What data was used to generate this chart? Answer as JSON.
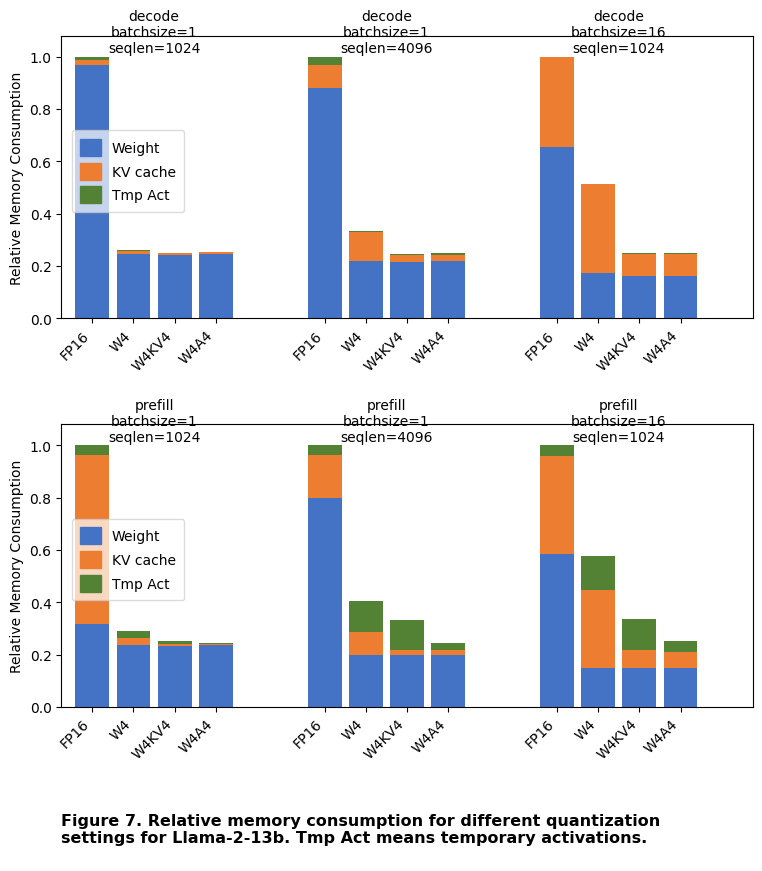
{
  "decode": {
    "groups": [
      {
        "label": "decode\nbatchsize=1\nseqlen=1024",
        "categories": [
          "FP16",
          "W4",
          "W4KV4",
          "W4A4"
        ],
        "weight": [
          0.97,
          0.245,
          0.24,
          0.244
        ],
        "kvcache": [
          0.018,
          0.014,
          0.008,
          0.008
        ],
        "tmpact": [
          0.012,
          0.001,
          0.001,
          0.001
        ]
      },
      {
        "label": "decode\nbatchsize=1\nseqlen=4096",
        "categories": [
          "FP16",
          "W4",
          "W4KV4",
          "W4A4"
        ],
        "weight": [
          0.88,
          0.22,
          0.215,
          0.218
        ],
        "kvcache": [
          0.09,
          0.11,
          0.025,
          0.025
        ],
        "tmpact": [
          0.03,
          0.005,
          0.005,
          0.005
        ]
      },
      {
        "label": "decode\nbatchsize=16\nseqlen=1024",
        "categories": [
          "FP16",
          "W4",
          "W4KV4",
          "W4A4"
        ],
        "weight": [
          0.655,
          0.172,
          0.163,
          0.163
        ],
        "kvcache": [
          0.345,
          0.34,
          0.082,
          0.082
        ],
        "tmpact": [
          0.0,
          0.003,
          0.003,
          0.003
        ]
      }
    ]
  },
  "prefill": {
    "groups": [
      {
        "label": "prefill\nbatchsize=1\nseqlen=1024",
        "categories": [
          "FP16",
          "W4",
          "W4KV4",
          "W4A4"
        ],
        "weight": [
          0.318,
          0.235,
          0.232,
          0.235
        ],
        "kvcache": [
          0.645,
          0.028,
          0.01,
          0.006
        ],
        "tmpact": [
          0.037,
          0.027,
          0.01,
          0.004
        ]
      },
      {
        "label": "prefill\nbatchsize=1\nseqlen=4096",
        "categories": [
          "FP16",
          "W4",
          "W4KV4",
          "W4A4"
        ],
        "weight": [
          0.8,
          0.2,
          0.2,
          0.2
        ],
        "kvcache": [
          0.165,
          0.085,
          0.018,
          0.018
        ],
        "tmpact": [
          0.035,
          0.12,
          0.115,
          0.027
        ]
      },
      {
        "label": "prefill\nbatchsize=16\nseqlen=1024",
        "categories": [
          "FP16",
          "W4",
          "W4KV4",
          "W4A4"
        ],
        "weight": [
          0.585,
          0.15,
          0.148,
          0.148
        ],
        "kvcache": [
          0.375,
          0.295,
          0.068,
          0.06
        ],
        "tmpact": [
          0.04,
          0.132,
          0.119,
          0.042
        ]
      }
    ]
  },
  "colors": {
    "weight": "#4472c4",
    "kvcache": "#ed7d31",
    "tmpact": "#548235"
  },
  "ylabel": "Relative Memory Consumption",
  "legend_labels": [
    "Weight",
    "KV cache",
    "Tmp Act"
  ],
  "caption": "Figure 7. Relative memory consumption for different quantization\nsettings for Llama-2-13b. Tmp Act means temporary activations."
}
